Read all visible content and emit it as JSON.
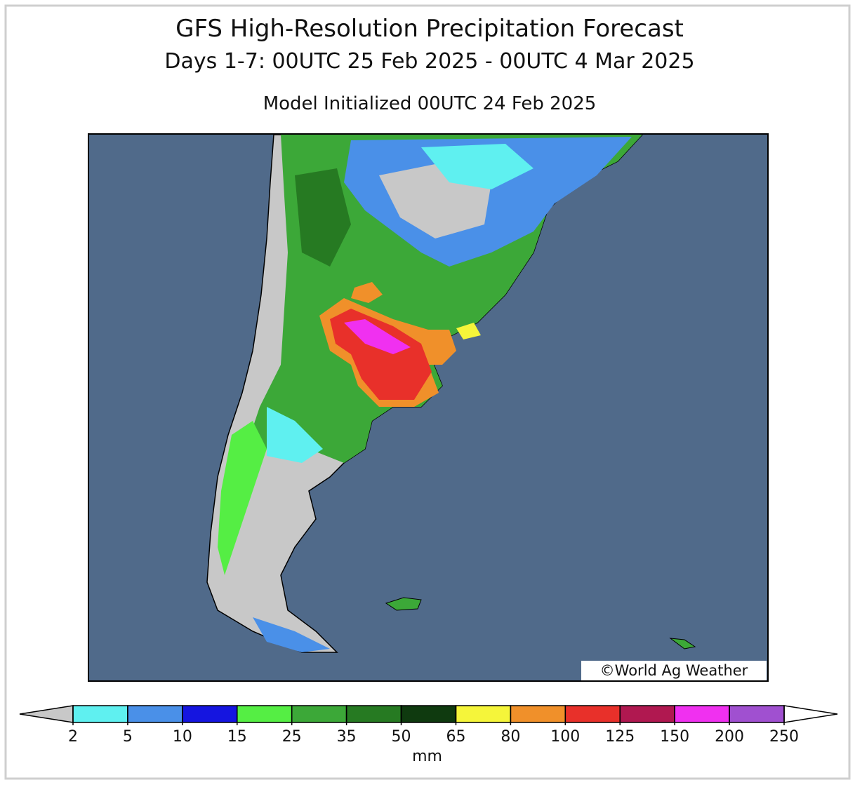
{
  "header": {
    "title": "GFS High-Resolution Precipitation Forecast",
    "subtitle": "Days 1-7: 00UTC 25 Feb 2025 - 00UTC 4 Mar 2025",
    "init": "Model Initialized 00UTC 24 Feb 2025"
  },
  "credit": "©World Ag Weather",
  "colorbar": {
    "ticks": [
      2,
      5,
      10,
      15,
      25,
      35,
      50,
      65,
      80,
      100,
      125,
      150,
      200,
      250
    ],
    "colors": [
      "#5ff0f0",
      "#4a90e8",
      "#1515e0",
      "#55ee44",
      "#3ca838",
      "#267a22",
      "#0f3a0f",
      "#f5f53a",
      "#f0902a",
      "#e8302a",
      "#b01850",
      "#f030f0",
      "#a050d0"
    ],
    "under_color": "#c8c8c8",
    "over_color": "#ffffff",
    "unit": "mm"
  }
}
